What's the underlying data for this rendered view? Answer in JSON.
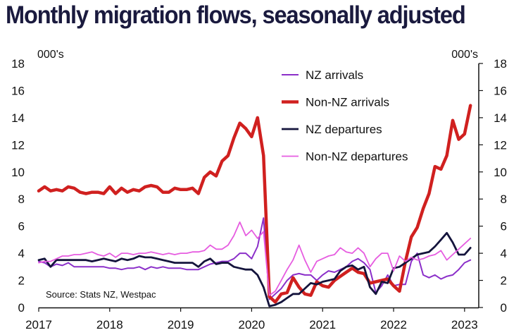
{
  "title": "Monthly migration flows, seasonally adjusted",
  "chart_data": {
    "type": "line",
    "title": "Monthly migration flows, seasonally adjusted",
    "left_unit": "000's",
    "right_unit": "000's",
    "source": "Source: Stats NZ, Westpac",
    "ylim": [
      0,
      18
    ],
    "yticks": [
      "0",
      "2",
      "4",
      "6",
      "8",
      "10",
      "12",
      "14",
      "16",
      "18"
    ],
    "xlim": [
      2017.0,
      2023.2
    ],
    "xticks": [
      "2017",
      "2018",
      "2019",
      "2020",
      "2021",
      "2022",
      "2023"
    ],
    "legend_position": "top-right",
    "grid": false,
    "series": [
      {
        "name": "NZ arrivals",
        "color": "#8b2fc9",
        "width": 2,
        "x": [
          2017.0,
          2017.083,
          2017.167,
          2017.25,
          2017.333,
          2017.417,
          2017.5,
          2017.583,
          2017.667,
          2017.75,
          2017.833,
          2017.917,
          2018.0,
          2018.083,
          2018.167,
          2018.25,
          2018.333,
          2018.417,
          2018.5,
          2018.583,
          2018.667,
          2018.75,
          2018.833,
          2018.917,
          2019.0,
          2019.083,
          2019.167,
          2019.25,
          2019.333,
          2019.417,
          2019.5,
          2019.583,
          2019.667,
          2019.75,
          2019.833,
          2019.917,
          2020.0,
          2020.083,
          2020.167,
          2020.25,
          2020.333,
          2020.417,
          2020.5,
          2020.583,
          2020.667,
          2020.75,
          2020.833,
          2020.917,
          2021.0,
          2021.083,
          2021.167,
          2021.25,
          2021.333,
          2021.417,
          2021.5,
          2021.583,
          2021.667,
          2021.75,
          2021.833,
          2021.917,
          2022.0,
          2022.083,
          2022.167,
          2022.25,
          2022.333,
          2022.417,
          2022.5,
          2022.583,
          2022.667,
          2022.75,
          2022.833,
          2022.917,
          2023.0,
          2023.083
        ],
        "values": [
          3.4,
          3.3,
          3.0,
          3.2,
          3.1,
          3.3,
          3.0,
          3.0,
          3.0,
          3.0,
          3.0,
          3.0,
          2.9,
          2.9,
          2.8,
          2.9,
          2.9,
          3.0,
          2.8,
          3.0,
          2.9,
          3.0,
          2.9,
          2.9,
          2.9,
          2.8,
          2.8,
          2.8,
          3.0,
          3.2,
          3.3,
          3.4,
          3.4,
          3.6,
          4.0,
          4.0,
          3.6,
          4.5,
          6.6,
          0.6,
          1.0,
          1.4,
          2.0,
          2.4,
          2.5,
          2.4,
          2.4,
          2.0,
          2.4,
          2.7,
          2.6,
          2.8,
          3.0,
          3.4,
          3.6,
          3.3,
          2.8,
          1.1,
          1.6,
          2.4,
          1.6,
          1.7,
          1.7,
          3.4,
          4.0,
          2.4,
          2.2,
          2.4,
          2.1,
          2.3,
          2.4,
          2.8,
          3.3,
          3.5
        ]
      },
      {
        "name": "Non-NZ arrivals",
        "color": "#d0201f",
        "width": 4.5,
        "x": [
          2017.0,
          2017.083,
          2017.167,
          2017.25,
          2017.333,
          2017.417,
          2017.5,
          2017.583,
          2017.667,
          2017.75,
          2017.833,
          2017.917,
          2018.0,
          2018.083,
          2018.167,
          2018.25,
          2018.333,
          2018.417,
          2018.5,
          2018.583,
          2018.667,
          2018.75,
          2018.833,
          2018.917,
          2019.0,
          2019.083,
          2019.167,
          2019.25,
          2019.333,
          2019.417,
          2019.5,
          2019.583,
          2019.667,
          2019.75,
          2019.833,
          2019.917,
          2020.0,
          2020.083,
          2020.167,
          2020.25,
          2020.333,
          2020.417,
          2020.5,
          2020.583,
          2020.667,
          2020.75,
          2020.833,
          2020.917,
          2021.0,
          2021.083,
          2021.167,
          2021.25,
          2021.333,
          2021.417,
          2021.5,
          2021.583,
          2021.667,
          2021.75,
          2021.833,
          2021.917,
          2022.0,
          2022.083,
          2022.167,
          2022.25,
          2022.333,
          2022.417,
          2022.5,
          2022.583,
          2022.667,
          2022.75,
          2022.833,
          2022.917,
          2023.0,
          2023.083
        ],
        "values": [
          8.6,
          8.9,
          8.6,
          8.7,
          8.6,
          8.9,
          8.8,
          8.5,
          8.4,
          8.5,
          8.5,
          8.4,
          8.9,
          8.4,
          8.8,
          8.5,
          8.7,
          8.6,
          8.9,
          9.0,
          8.9,
          8.5,
          8.5,
          8.8,
          8.7,
          8.7,
          8.8,
          8.4,
          9.6,
          10.0,
          9.7,
          10.8,
          11.2,
          12.5,
          13.6,
          13.2,
          12.6,
          14.0,
          11.2,
          0.8,
          0.4,
          1.0,
          1.1,
          2.2,
          1.5,
          1.0,
          0.9,
          1.9,
          1.6,
          1.5,
          2.0,
          2.3,
          2.6,
          2.9,
          2.6,
          2.5,
          1.8,
          1.9,
          2.0,
          2.1,
          1.6,
          1.2,
          3.4,
          5.2,
          5.9,
          7.3,
          8.4,
          10.4,
          10.2,
          11.2,
          13.8,
          12.4,
          12.8,
          14.9
        ]
      },
      {
        "name": "NZ departures",
        "color": "#14143c",
        "width": 2.8,
        "x": [
          2017.0,
          2017.083,
          2017.167,
          2017.25,
          2017.333,
          2017.417,
          2017.5,
          2017.583,
          2017.667,
          2017.75,
          2017.833,
          2017.917,
          2018.0,
          2018.083,
          2018.167,
          2018.25,
          2018.333,
          2018.417,
          2018.5,
          2018.583,
          2018.667,
          2018.75,
          2018.833,
          2018.917,
          2019.0,
          2019.083,
          2019.167,
          2019.25,
          2019.333,
          2019.417,
          2019.5,
          2019.583,
          2019.667,
          2019.75,
          2019.833,
          2019.917,
          2020.0,
          2020.083,
          2020.167,
          2020.25,
          2020.333,
          2020.417,
          2020.5,
          2020.583,
          2020.667,
          2020.75,
          2020.833,
          2020.917,
          2021.0,
          2021.083,
          2021.167,
          2021.25,
          2021.333,
          2021.417,
          2021.5,
          2021.583,
          2021.667,
          2021.75,
          2021.833,
          2021.917,
          2022.0,
          2022.083,
          2022.167,
          2022.25,
          2022.333,
          2022.417,
          2022.5,
          2022.583,
          2022.667,
          2022.75,
          2022.833,
          2022.917,
          2023.0,
          2023.083
        ],
        "values": [
          3.5,
          3.6,
          3.0,
          3.5,
          3.5,
          3.5,
          3.5,
          3.5,
          3.5,
          3.4,
          3.5,
          3.6,
          3.5,
          3.4,
          3.6,
          3.5,
          3.6,
          3.8,
          3.7,
          3.7,
          3.6,
          3.5,
          3.4,
          3.3,
          3.3,
          3.3,
          3.3,
          3.0,
          3.4,
          3.6,
          3.2,
          3.3,
          3.3,
          3.0,
          2.9,
          2.8,
          2.8,
          2.4,
          1.5,
          0.1,
          0.2,
          0.4,
          0.7,
          1.0,
          1.0,
          1.4,
          1.8,
          1.7,
          1.9,
          2.0,
          2.1,
          2.7,
          3.0,
          3.1,
          2.8,
          3.0,
          1.5,
          1.0,
          1.9,
          1.8,
          2.9,
          3.0,
          3.3,
          3.6,
          3.9,
          4.0,
          4.1,
          4.5,
          5.0,
          5.5,
          4.8,
          3.9,
          3.9,
          4.4
        ]
      },
      {
        "name": "Non-NZ departures",
        "color": "#e65ce0",
        "width": 1.8,
        "x": [
          2017.0,
          2017.083,
          2017.167,
          2017.25,
          2017.333,
          2017.417,
          2017.5,
          2017.583,
          2017.667,
          2017.75,
          2017.833,
          2017.917,
          2018.0,
          2018.083,
          2018.167,
          2018.25,
          2018.333,
          2018.417,
          2018.5,
          2018.583,
          2018.667,
          2018.75,
          2018.833,
          2018.917,
          2019.0,
          2019.083,
          2019.167,
          2019.25,
          2019.333,
          2019.417,
          2019.5,
          2019.583,
          2019.667,
          2019.75,
          2019.833,
          2019.917,
          2020.0,
          2020.083,
          2020.167,
          2020.25,
          2020.333,
          2020.417,
          2020.5,
          2020.583,
          2020.667,
          2020.75,
          2020.833,
          2020.917,
          2021.0,
          2021.083,
          2021.167,
          2021.25,
          2021.333,
          2021.417,
          2021.5,
          2021.583,
          2021.667,
          2021.75,
          2021.833,
          2021.917,
          2022.0,
          2022.083,
          2022.167,
          2022.25,
          2022.333,
          2022.417,
          2022.5,
          2022.583,
          2022.667,
          2022.75,
          2022.833,
          2022.917,
          2023.0,
          2023.083
        ],
        "values": [
          3.3,
          3.4,
          3.4,
          3.6,
          3.8,
          3.8,
          3.9,
          3.9,
          4.0,
          4.1,
          3.9,
          3.8,
          4.0,
          3.7,
          4.0,
          4.0,
          3.9,
          4.0,
          4.0,
          4.1,
          4.0,
          3.9,
          4.0,
          3.9,
          4.0,
          4.0,
          4.1,
          4.1,
          4.2,
          4.6,
          4.3,
          4.3,
          4.6,
          5.3,
          6.3,
          5.3,
          5.7,
          5.1,
          5.6,
          0.9,
          1.2,
          2.0,
          2.8,
          3.5,
          4.6,
          3.5,
          2.6,
          3.4,
          3.6,
          3.8,
          3.9,
          4.4,
          4.1,
          4.0,
          4.4,
          4.0,
          3.0,
          3.6,
          4.0,
          4.0,
          2.7,
          3.8,
          3.4,
          3.7,
          3.5,
          3.6,
          3.8,
          3.9,
          4.2,
          3.5,
          3.9,
          4.3,
          4.7,
          5.1
        ]
      }
    ]
  }
}
